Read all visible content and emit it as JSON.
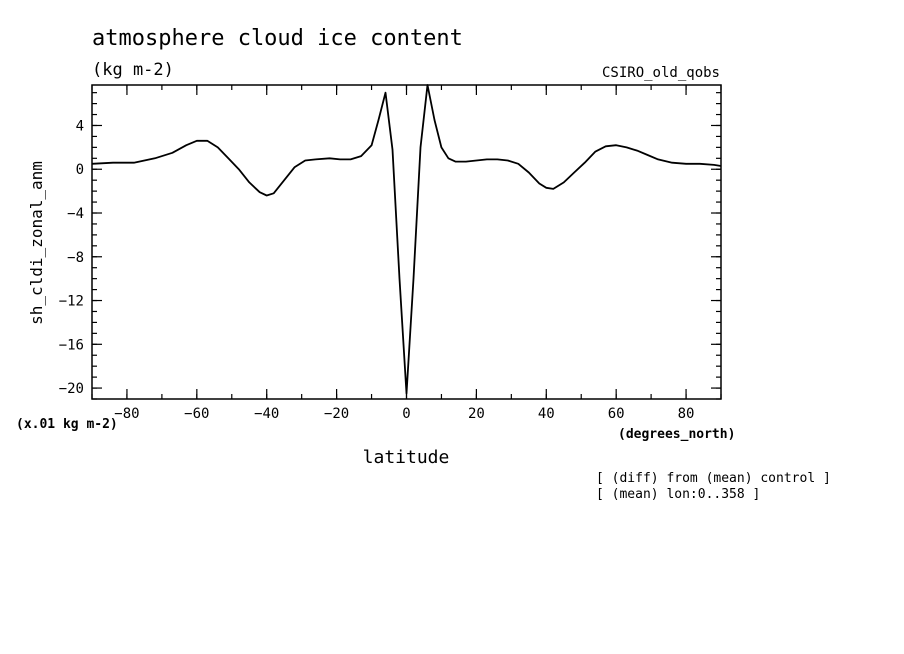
{
  "header": {
    "title": "atmosphere cloud ice content",
    "units": "(kg m-2)",
    "model": "CSIRO_old_qobs"
  },
  "notes": {
    "scale": "(x.01 kg m-2)",
    "xunits": "(degrees_north)",
    "diff": "[ (diff) from (mean) control ]",
    "mean": "[ (mean) lon:0..358 ]"
  },
  "chart_data": {
    "type": "line",
    "title": "atmosphere cloud ice content",
    "xlabel": "latitude",
    "ylabel": "sh_cldi_zonal_anm",
    "xlim": [
      -90,
      90
    ],
    "ylim": [
      -21,
      7.7
    ],
    "xticks": [
      -80,
      -60,
      -40,
      -20,
      0,
      20,
      40,
      60,
      80
    ],
    "yticks": [
      4,
      0,
      -4,
      -8,
      -12,
      -16,
      -20
    ],
    "grid": false,
    "series": [
      {
        "x": [
          -90,
          -84,
          -78,
          -72,
          -67,
          -63,
          -60,
          -57,
          -54,
          -51,
          -48,
          -45,
          -42,
          -40,
          -38,
          -35,
          -32,
          -29,
          -26,
          -22,
          -19,
          -16,
          -13,
          -10,
          -8,
          -6,
          -4,
          -2,
          0,
          2,
          4,
          6,
          8,
          10,
          12,
          14,
          17,
          20,
          23,
          26,
          29,
          32,
          35,
          38,
          40,
          42,
          45,
          48,
          51,
          54,
          57,
          60,
          63,
          66,
          69,
          72,
          76,
          80,
          84,
          88,
          90
        ],
        "values": [
          0.5,
          0.6,
          0.6,
          1.0,
          1.5,
          2.2,
          2.6,
          2.6,
          2.0,
          1.0,
          0.0,
          -1.2,
          -2.1,
          -2.4,
          -2.2,
          -1.0,
          0.2,
          0.8,
          0.9,
          1.0,
          0.9,
          0.9,
          1.2,
          2.2,
          4.5,
          7.0,
          1.8,
          -10.0,
          -20.5,
          -10.0,
          2.0,
          7.7,
          4.5,
          2.0,
          1.0,
          0.7,
          0.7,
          0.8,
          0.9,
          0.9,
          0.8,
          0.5,
          -0.3,
          -1.3,
          -1.7,
          -1.8,
          -1.2,
          -0.3,
          0.6,
          1.6,
          2.1,
          2.2,
          2.0,
          1.7,
          1.3,
          0.9,
          0.6,
          0.5,
          0.5,
          0.4,
          0.3
        ]
      }
    ]
  }
}
